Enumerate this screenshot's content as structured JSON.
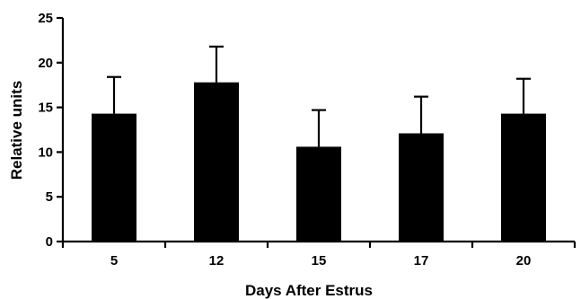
{
  "chart_data": {
    "type": "bar",
    "title": "",
    "xlabel": "Days After Estrus",
    "ylabel": "Relative units",
    "categories": [
      "5",
      "12",
      "15",
      "17",
      "20"
    ],
    "values": [
      14.3,
      17.8,
      10.6,
      12.1,
      14.3
    ],
    "error_upper": [
      4.1,
      4.0,
      4.1,
      4.1,
      3.9
    ],
    "ylim": [
      0,
      25
    ],
    "yticks": [
      0,
      5,
      10,
      15,
      20,
      25
    ],
    "grid": false,
    "legend": "none",
    "colors": {
      "bar": "#000000",
      "axis": "#000000",
      "background": "#ffffff"
    }
  }
}
